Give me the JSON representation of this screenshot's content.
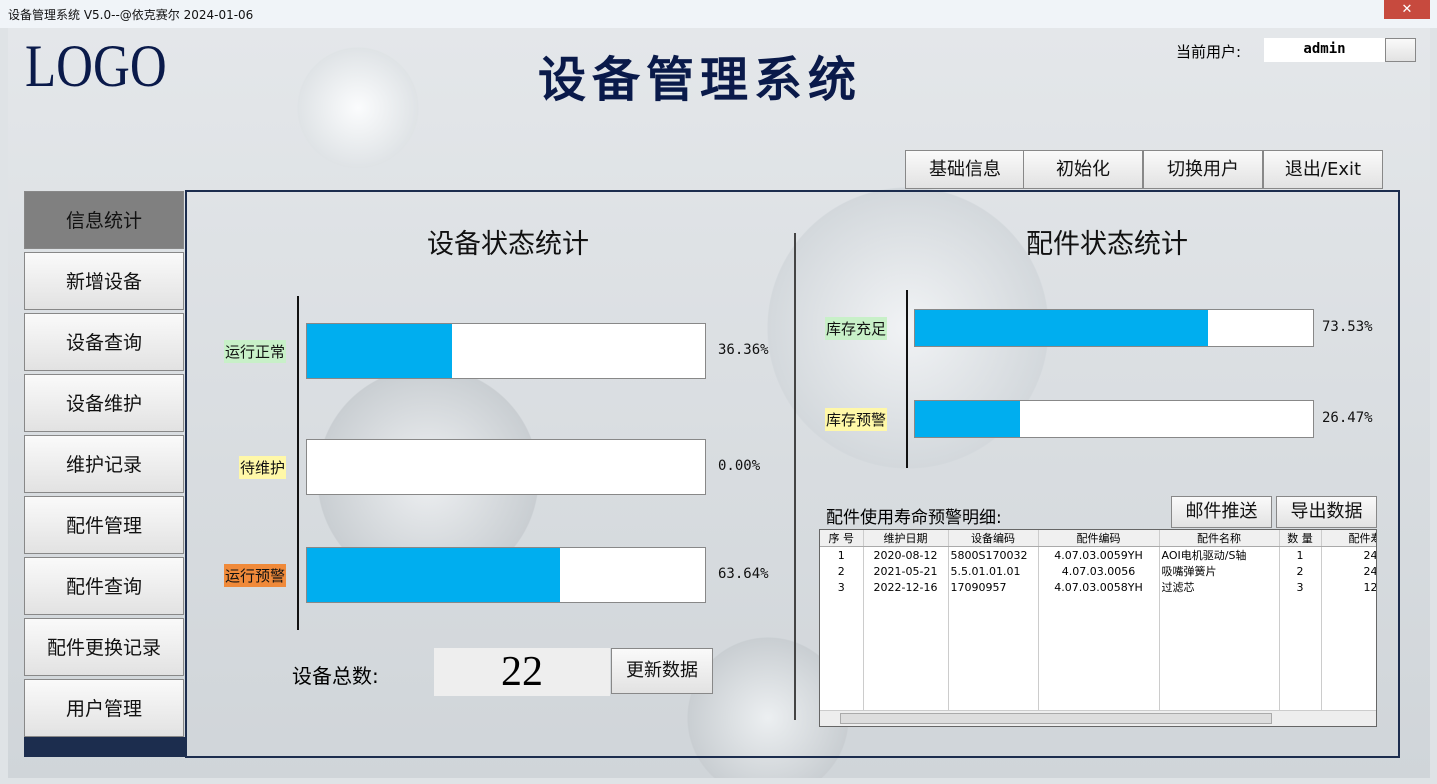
{
  "window": {
    "title": "设备管理系统 V5.0--@依克赛尔  2024-01-06"
  },
  "header": {
    "logo": "LOGO",
    "title": "设备管理系统",
    "user_label": "当前用户:",
    "user": "admin"
  },
  "toolbar": [
    "基础信息",
    "初始化",
    "切换用户",
    "退出/Exit"
  ],
  "nav": {
    "items": [
      "信息统计",
      "新增设备",
      "设备查询",
      "设备维护",
      "维护记录",
      "配件管理",
      "配件查询",
      "配件更换记录",
      "用户管理"
    ],
    "active": 0
  },
  "equipment": {
    "title": "设备状态统计",
    "bars": [
      {
        "label": "运行正常",
        "color": "#c8f0c8",
        "value": 36.36,
        "value_label": "36.36%"
      },
      {
        "label": "待维护",
        "color": "#fff8a8",
        "value": 0,
        "value_label": "0.00%"
      },
      {
        "label": "运行预警",
        "color": "#f08a3a",
        "value": 63.64,
        "value_label": "63.64%"
      }
    ],
    "total_label": "设备总数:",
    "total": 22,
    "refresh": "更新数据"
  },
  "parts": {
    "title": "配件状态统计",
    "bars": [
      {
        "label": "库存充足",
        "color": "#c8f0c8",
        "value": 73.53,
        "value_label": "73.53%"
      },
      {
        "label": "库存预警",
        "color": "#fff8a8",
        "value": 26.47,
        "value_label": "26.47%"
      }
    ],
    "detail_title": "配件使用寿命预警明细:",
    "buttons": [
      "邮件推送",
      "导出数据"
    ]
  },
  "table": {
    "columns": [
      "序 号",
      "维护日期",
      "设备编码",
      "配件编码",
      "配件名称",
      "数 量",
      "配件寿命"
    ],
    "rows": [
      [
        1,
        "2020-08-12",
        "5800S170032",
        "4.07.03.0059YH",
        "AOI电机驱动/S轴",
        1,
        24
      ],
      [
        2,
        "2021-05-21",
        "5.5.01.01.01",
        "4.07.03.0056",
        "吸嘴弹簧片",
        2,
        24
      ],
      [
        3,
        "2022-12-16",
        "17090957",
        "4.07.03.0058YH",
        "过滤芯",
        3,
        12
      ]
    ]
  }
}
